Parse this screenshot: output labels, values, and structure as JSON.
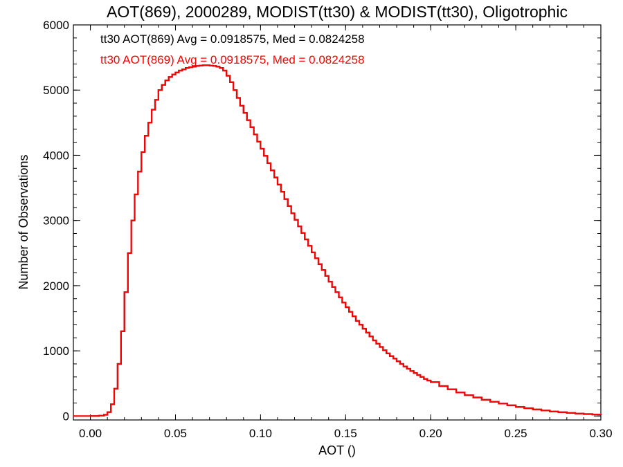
{
  "chart_data": {
    "type": "line",
    "title": "AOT(869), 2000289, MODIST(tt30) & MODIST(tt30), Oligotrophic",
    "xlabel": "AOT ()",
    "ylabel": "Number of Observations",
    "xlim": [
      -0.01,
      0.3
    ],
    "ylim": [
      -60,
      6000
    ],
    "x_ticks": [
      0.0,
      0.05,
      0.1,
      0.15,
      0.2,
      0.25,
      0.3
    ],
    "x_tick_labels": [
      "0.00",
      "0.05",
      "0.10",
      "0.15",
      "0.20",
      "0.25",
      "0.30"
    ],
    "y_ticks": [
      0,
      1000,
      2000,
      3000,
      4000,
      5000,
      6000
    ],
    "y_tick_labels": [
      "0",
      "1000",
      "2000",
      "3000",
      "4000",
      "5000",
      "6000"
    ],
    "grid": false,
    "legend_position": "top-left",
    "series": [
      {
        "name": "tt30 AOT(869) Avg = 0.0918575, Med = 0.0824258",
        "color": "#000000",
        "x": [
          0.0,
          0.005,
          0.008,
          0.01,
          0.012,
          0.014,
          0.016,
          0.018,
          0.02,
          0.022,
          0.024,
          0.026,
          0.028,
          0.03,
          0.032,
          0.034,
          0.036,
          0.038,
          0.04,
          0.042,
          0.044,
          0.046,
          0.048,
          0.05,
          0.052,
          0.054,
          0.056,
          0.058,
          0.06,
          0.062,
          0.064,
          0.066,
          0.068,
          0.07,
          0.072,
          0.074,
          0.076,
          0.078,
          0.08,
          0.082,
          0.084,
          0.086,
          0.088,
          0.09,
          0.092,
          0.094,
          0.096,
          0.098,
          0.1,
          0.102,
          0.104,
          0.106,
          0.108,
          0.11,
          0.112,
          0.114,
          0.116,
          0.118,
          0.12,
          0.122,
          0.124,
          0.126,
          0.128,
          0.13,
          0.132,
          0.134,
          0.136,
          0.138,
          0.14,
          0.142,
          0.144,
          0.146,
          0.148,
          0.15,
          0.152,
          0.154,
          0.156,
          0.158,
          0.16,
          0.162,
          0.164,
          0.166,
          0.168,
          0.17,
          0.172,
          0.174,
          0.176,
          0.178,
          0.18,
          0.182,
          0.184,
          0.186,
          0.188,
          0.19,
          0.192,
          0.194,
          0.196,
          0.198,
          0.2,
          0.205,
          0.21,
          0.215,
          0.22,
          0.225,
          0.23,
          0.235,
          0.24,
          0.245,
          0.25,
          0.255,
          0.26,
          0.265,
          0.27,
          0.275,
          0.28,
          0.285,
          0.29,
          0.295,
          0.3
        ],
        "y": [
          0,
          5,
          20,
          60,
          180,
          420,
          800,
          1300,
          1900,
          2500,
          3000,
          3400,
          3750,
          4050,
          4300,
          4500,
          4700,
          4850,
          5000,
          5080,
          5150,
          5200,
          5240,
          5270,
          5300,
          5320,
          5340,
          5350,
          5360,
          5370,
          5375,
          5380,
          5380,
          5375,
          5370,
          5360,
          5340,
          5300,
          5220,
          5120,
          5000,
          4880,
          4760,
          4650,
          4540,
          4430,
          4320,
          4210,
          4100,
          3990,
          3880,
          3770,
          3660,
          3550,
          3440,
          3330,
          3220,
          3110,
          3010,
          2910,
          2810,
          2710,
          2610,
          2510,
          2420,
          2330,
          2240,
          2150,
          2060,
          1980,
          1900,
          1820,
          1740,
          1670,
          1600,
          1530,
          1460,
          1400,
          1340,
          1280,
          1220,
          1160,
          1110,
          1060,
          1010,
          960,
          920,
          880,
          840,
          800,
          760,
          725,
          690,
          660,
          630,
          600,
          570,
          545,
          520,
          460,
          410,
          360,
          320,
          285,
          250,
          220,
          190,
          165,
          140,
          120,
          100,
          85,
          70,
          58,
          47,
          38,
          30,
          23,
          18
        ]
      },
      {
        "name": "tt30 AOT(869) Avg = 0.0918575, Med = 0.0824258",
        "color": "#ff0000",
        "x": [
          -0.01,
          -0.005,
          0.0,
          0.005,
          0.008,
          0.01,
          0.012,
          0.014,
          0.016,
          0.018,
          0.02,
          0.022,
          0.024,
          0.026,
          0.028,
          0.03,
          0.032,
          0.034,
          0.036,
          0.038,
          0.04,
          0.042,
          0.044,
          0.046,
          0.048,
          0.05,
          0.052,
          0.054,
          0.056,
          0.058,
          0.06,
          0.062,
          0.064,
          0.066,
          0.068,
          0.07,
          0.072,
          0.074,
          0.076,
          0.078,
          0.08,
          0.082,
          0.084,
          0.086,
          0.088,
          0.09,
          0.092,
          0.094,
          0.096,
          0.098,
          0.1,
          0.102,
          0.104,
          0.106,
          0.108,
          0.11,
          0.112,
          0.114,
          0.116,
          0.118,
          0.12,
          0.122,
          0.124,
          0.126,
          0.128,
          0.13,
          0.132,
          0.134,
          0.136,
          0.138,
          0.14,
          0.142,
          0.144,
          0.146,
          0.148,
          0.15,
          0.152,
          0.154,
          0.156,
          0.158,
          0.16,
          0.162,
          0.164,
          0.166,
          0.168,
          0.17,
          0.172,
          0.174,
          0.176,
          0.178,
          0.18,
          0.182,
          0.184,
          0.186,
          0.188,
          0.19,
          0.192,
          0.194,
          0.196,
          0.198,
          0.2,
          0.205,
          0.21,
          0.215,
          0.22,
          0.225,
          0.23,
          0.235,
          0.24,
          0.245,
          0.25,
          0.255,
          0.26,
          0.265,
          0.27,
          0.275,
          0.28,
          0.285,
          0.29,
          0.295,
          0.3
        ],
        "y": [
          0,
          0,
          0,
          5,
          20,
          60,
          180,
          420,
          800,
          1300,
          1900,
          2500,
          3000,
          3400,
          3750,
          4050,
          4300,
          4500,
          4700,
          4850,
          5000,
          5080,
          5150,
          5200,
          5240,
          5270,
          5300,
          5320,
          5340,
          5350,
          5360,
          5370,
          5375,
          5380,
          5380,
          5375,
          5370,
          5360,
          5340,
          5300,
          5220,
          5120,
          5000,
          4880,
          4760,
          4650,
          4540,
          4430,
          4320,
          4210,
          4100,
          3990,
          3880,
          3770,
          3660,
          3550,
          3440,
          3330,
          3220,
          3110,
          3010,
          2910,
          2810,
          2710,
          2610,
          2510,
          2420,
          2330,
          2240,
          2150,
          2060,
          1980,
          1900,
          1820,
          1740,
          1670,
          1600,
          1530,
          1460,
          1400,
          1340,
          1280,
          1220,
          1160,
          1110,
          1060,
          1010,
          960,
          920,
          880,
          840,
          800,
          760,
          725,
          690,
          660,
          630,
          600,
          570,
          545,
          520,
          460,
          410,
          360,
          320,
          285,
          250,
          220,
          190,
          165,
          140,
          120,
          100,
          85,
          70,
          58,
          47,
          38,
          30,
          23,
          18
        ]
      }
    ]
  }
}
